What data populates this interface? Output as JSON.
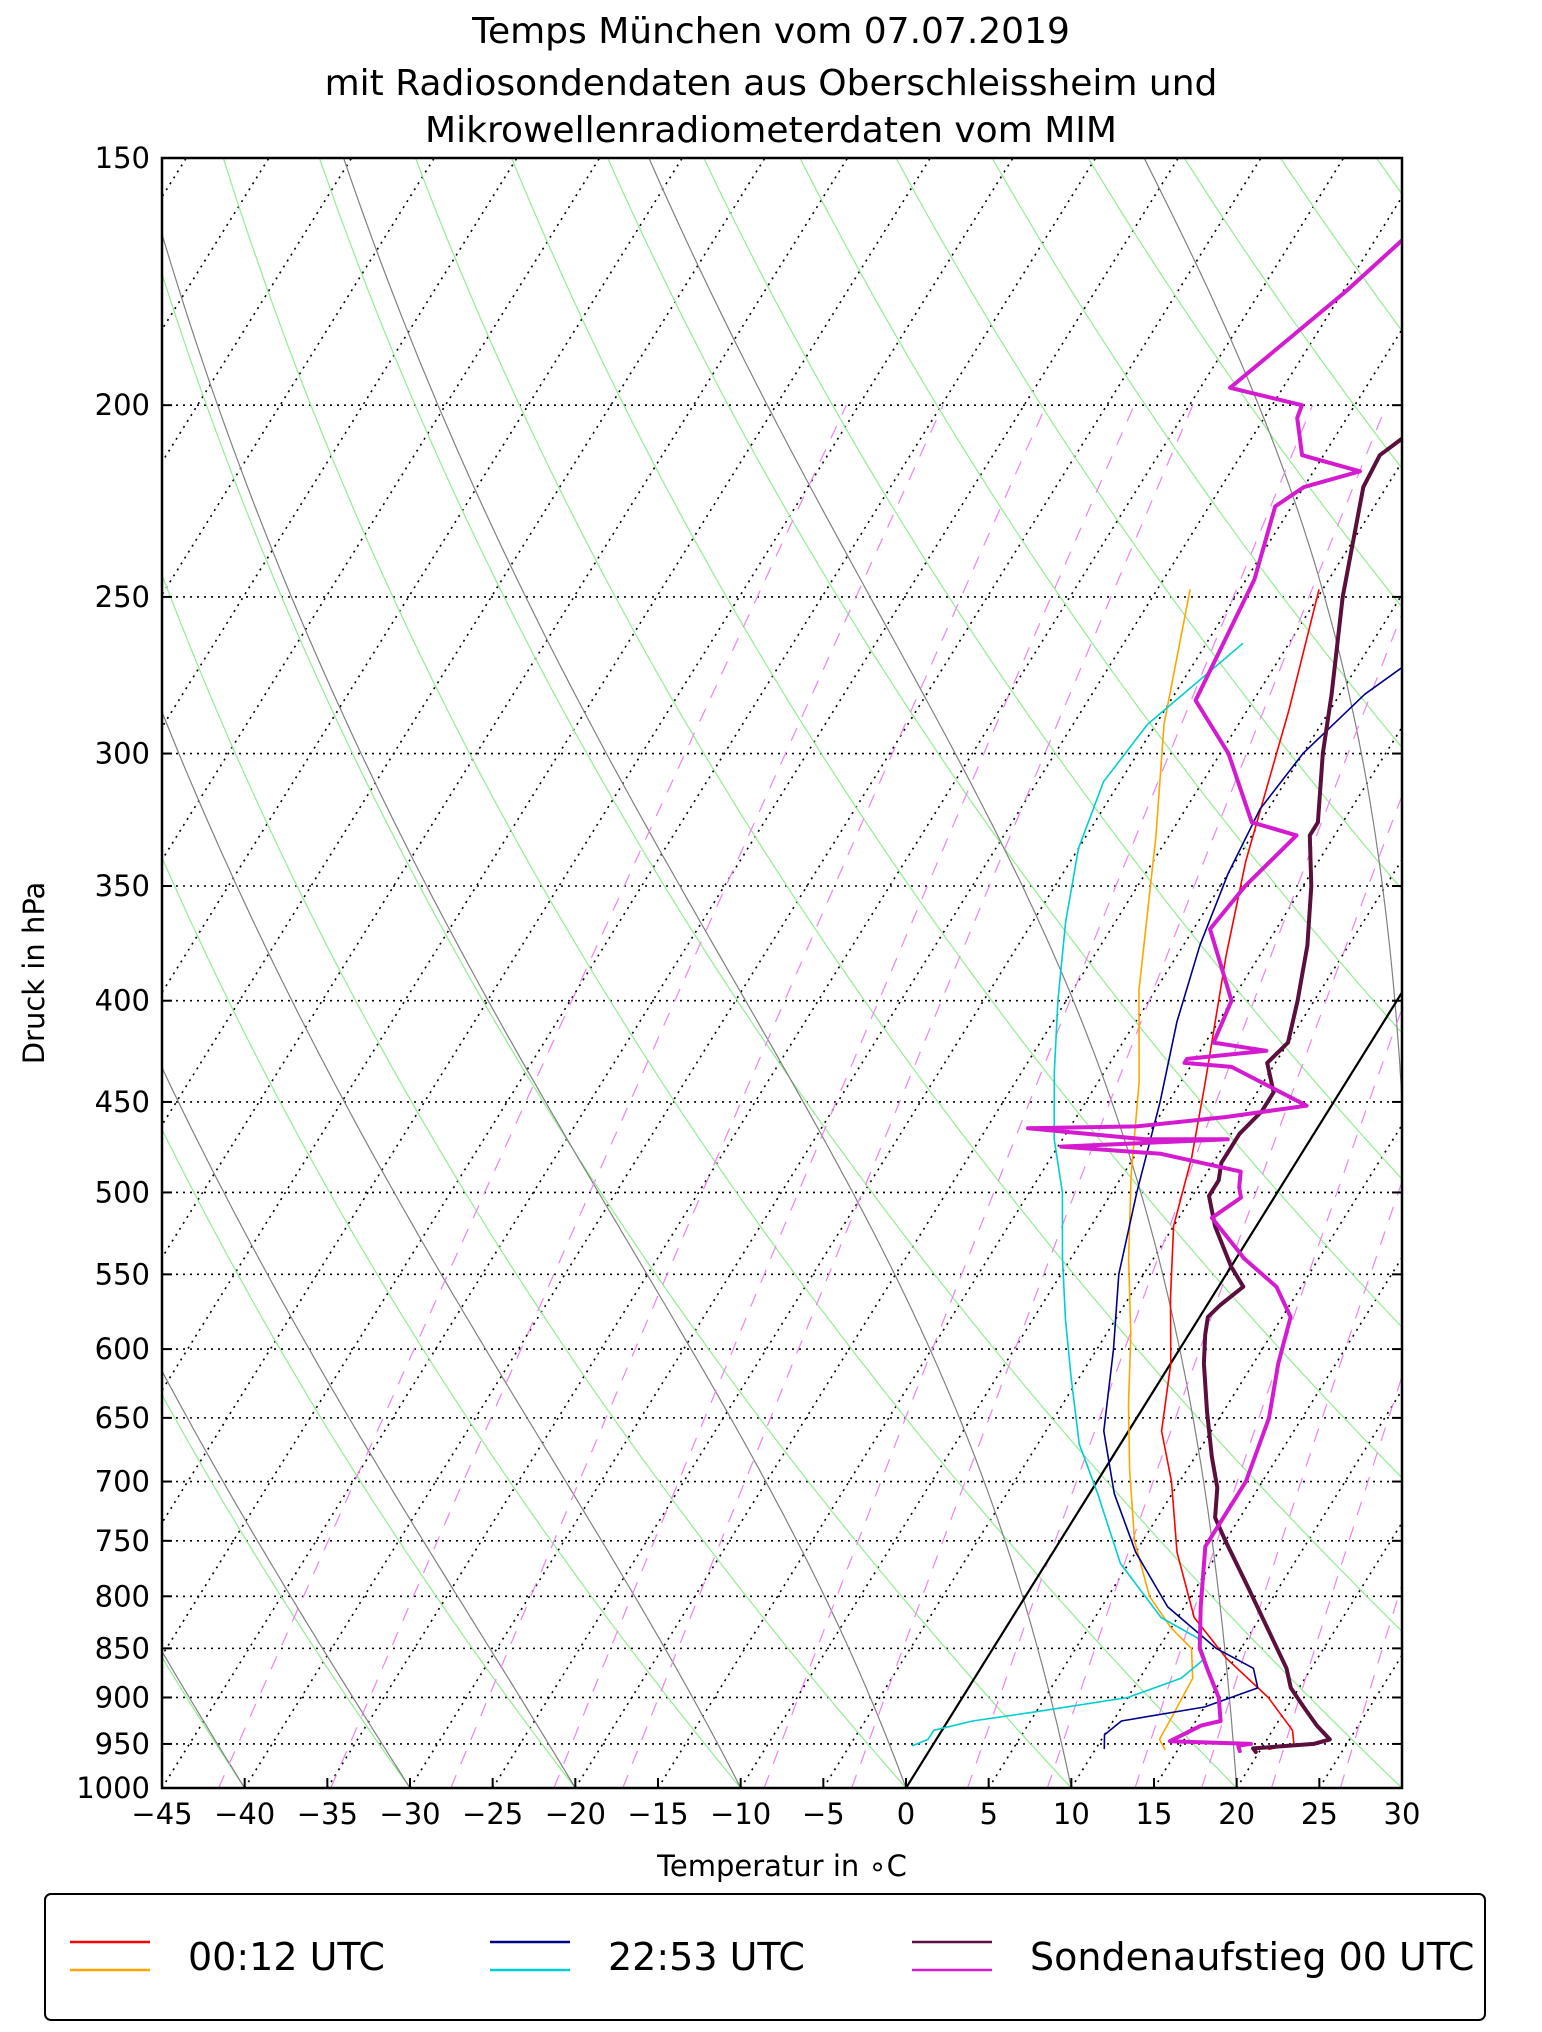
{
  "chart_data": {
    "type": "line",
    "title_lines": [
      "Temps München vom 07.07.2019",
      "mit Radiosondendaten aus Oberschleissheim und",
      "Mikrowellenradiometerdaten vom MIM"
    ],
    "xlabel": "Temperatur in ∘C",
    "ylabel": "Druck in hPa",
    "xlim": [
      -45,
      30
    ],
    "ylim": [
      1000,
      150
    ],
    "yscale": "log",
    "skew": true,
    "x_ticks": [
      -45,
      -40,
      -35,
      -30,
      -25,
      -20,
      -15,
      -10,
      -5,
      0,
      5,
      10,
      15,
      20,
      25,
      30
    ],
    "x_tick_labels": [
      "−45",
      "−40",
      "−35",
      "−30",
      "−25",
      "−20",
      "−15",
      "−10",
      "−5",
      "0",
      "5",
      "10",
      "15",
      "20",
      "25",
      "30"
    ],
    "y_ticks": [
      150,
      200,
      250,
      300,
      350,
      400,
      450,
      500,
      550,
      600,
      650,
      700,
      750,
      800,
      850,
      900,
      950,
      1000
    ],
    "y_tick_labels": [
      "150",
      "200",
      "250",
      "300",
      "350",
      "400",
      "450",
      "500",
      "550",
      "600",
      "650",
      "700",
      "750",
      "800",
      "850",
      "900",
      "950",
      "1000"
    ],
    "grid": true,
    "legend_position": "bottom",
    "legend": [
      {
        "label": "00:12 UTC",
        "colors": [
          "#ff0000",
          "#ffa500"
        ]
      },
      {
        "label": "22:53 UTC",
        "colors": [
          "#00008b",
          "#00ced1"
        ]
      },
      {
        "label": "Sondenaufstieg 00 UTC",
        "colors": [
          "#5a0f3c",
          "#d41bd0"
        ]
      }
    ],
    "isotherm_zero_color": "#000000",
    "dry_adiabat_color": "#90ee90",
    "moist_adiabat_color": "#808080",
    "mixing_ratio_color": "#ee82ee",
    "series": [
      {
        "color": "#ff0000",
        "width": 1.6,
        "points": [
          [
            -20.2,
            248
          ],
          [
            -17.5,
            285
          ],
          [
            -14.4,
            340
          ],
          [
            -12,
            380
          ],
          [
            -8.5,
            440
          ],
          [
            -6.5,
            480
          ],
          [
            -5,
            520
          ],
          [
            -2.5,
            565
          ],
          [
            0,
            610
          ],
          [
            2,
            660
          ],
          [
            4.5,
            700
          ],
          [
            7.5,
            760
          ],
          [
            11,
            820
          ],
          [
            14.5,
            860
          ],
          [
            18.5,
            900
          ],
          [
            21.2,
            935
          ],
          [
            21.8,
            950
          ],
          [
            20.5,
            956
          ]
        ]
      },
      {
        "color": "#ffa500",
        "width": 1.6,
        "points": [
          [
            -28,
            248
          ],
          [
            -24.5,
            290
          ],
          [
            -20.8,
            330
          ],
          [
            -16,
            395
          ],
          [
            -12.5,
            440
          ],
          [
            -9.5,
            490
          ],
          [
            -6.5,
            540
          ],
          [
            -3.5,
            590
          ],
          [
            -1,
            640
          ],
          [
            1.5,
            690
          ],
          [
            4.5,
            750
          ],
          [
            7.5,
            800
          ],
          [
            10,
            830
          ],
          [
            12,
            850
          ],
          [
            13.2,
            880
          ],
          [
            13.4,
            920
          ],
          [
            13.5,
            945
          ],
          [
            14.2,
            956
          ]
        ]
      },
      {
        "color": "#00008b",
        "width": 1.6,
        "points": [
          [
            -11,
            263
          ],
          [
            -13.5,
            280
          ],
          [
            -15,
            300
          ],
          [
            -15.5,
            320
          ],
          [
            -15,
            345
          ],
          [
            -14,
            375
          ],
          [
            -12.5,
            410
          ],
          [
            -10.5,
            450
          ],
          [
            -8.5,
            500
          ],
          [
            -6.5,
            550
          ],
          [
            -4,
            600
          ],
          [
            -1.5,
            660
          ],
          [
            1.5,
            710
          ],
          [
            5,
            760
          ],
          [
            9,
            810
          ],
          [
            13.5,
            850
          ],
          [
            16.5,
            870
          ],
          [
            17.5,
            890
          ],
          [
            15,
            910
          ],
          [
            10.5,
            925
          ],
          [
            10,
            940
          ],
          [
            10.5,
            955
          ]
        ]
      },
      {
        "color": "#00ced1",
        "width": 1.6,
        "points": [
          [
            -22.8,
            264
          ],
          [
            -25.5,
            290
          ],
          [
            -26,
            310
          ],
          [
            -25,
            335
          ],
          [
            -23,
            365
          ],
          [
            -20.5,
            400
          ],
          [
            -18,
            435
          ],
          [
            -15.5,
            470
          ],
          [
            -13,
            500
          ],
          [
            -10.5,
            540
          ],
          [
            -8,
            580
          ],
          [
            -5.5,
            620
          ],
          [
            -2.5,
            670
          ],
          [
            0.5,
            710
          ],
          [
            4.5,
            770
          ],
          [
            9,
            820
          ],
          [
            12,
            840
          ],
          [
            13.2,
            860
          ],
          [
            12.5,
            880
          ],
          [
            10,
            900
          ],
          [
            5,
            915
          ],
          [
            1.5,
            925
          ],
          [
            -0.5,
            935
          ],
          [
            -0.5,
            945
          ],
          [
            -1.2,
            952
          ]
        ]
      },
      {
        "color": "#5a0f3c",
        "width": 4,
        "points": [
          [
            -11.5,
            150
          ],
          [
            -15.8,
            175
          ],
          [
            -19.5,
            198
          ],
          [
            -19.8,
            202
          ],
          [
            -21.6,
            212
          ],
          [
            -21.4,
            220
          ],
          [
            -18.5,
            250
          ],
          [
            -15.5,
            280
          ],
          [
            -13.8,
            300
          ],
          [
            -11.5,
            325
          ],
          [
            -11.5,
            330
          ],
          [
            -9.5,
            350
          ],
          [
            -7.5,
            375
          ],
          [
            -6,
            400
          ],
          [
            -5,
            420
          ],
          [
            -5.5,
            430
          ],
          [
            -4,
            445
          ],
          [
            -4,
            455
          ],
          [
            -4.5,
            467
          ],
          [
            -4.5,
            475
          ],
          [
            -4.5,
            483
          ],
          [
            -4,
            493
          ],
          [
            -4,
            502
          ],
          [
            -2.5,
            520
          ],
          [
            0,
            545
          ],
          [
            1.5,
            558
          ],
          [
            0.8,
            570
          ],
          [
            0.5,
            578
          ],
          [
            1,
            590
          ],
          [
            2,
            610
          ],
          [
            4,
            645
          ],
          [
            6,
            680
          ],
          [
            7.5,
            705
          ],
          [
            8.5,
            730
          ],
          [
            10,
            750
          ],
          [
            13,
            790
          ],
          [
            16.5,
            840
          ],
          [
            18.5,
            870
          ],
          [
            19.5,
            890
          ],
          [
            21,
            910
          ],
          [
            22.5,
            930
          ],
          [
            23.8,
            945
          ],
          [
            23,
            950
          ],
          [
            19.5,
            955
          ],
          [
            19.8,
            959
          ]
        ]
      },
      {
        "color": "#d41bd0",
        "width": 4,
        "points": [
          [
            -26,
            150
          ],
          [
            -29.8,
            175
          ],
          [
            -33.2,
            196
          ],
          [
            -28.2,
            200
          ],
          [
            -28,
            203
          ],
          [
            -26.3,
            212
          ],
          [
            -22.2,
            216
          ],
          [
            -25,
            220
          ],
          [
            -26,
            225
          ],
          [
            -24.5,
            245
          ],
          [
            -23.5,
            282
          ],
          [
            -19.5,
            300
          ],
          [
            -15.5,
            325
          ],
          [
            -12.3,
            330
          ],
          [
            -13.5,
            350
          ],
          [
            -14,
            368
          ],
          [
            -10,
            400
          ],
          [
            -9.5,
            420
          ],
          [
            -6,
            424
          ],
          [
            -10.5,
            428
          ],
          [
            -10.5,
            430
          ],
          [
            -7.5,
            432
          ],
          [
            -1.5,
            452
          ],
          [
            -6,
            458
          ],
          [
            -11,
            463
          ],
          [
            -17.5,
            464
          ],
          [
            -10,
            470
          ],
          [
            -5,
            470
          ],
          [
            -14.8,
            474
          ],
          [
            -8.5,
            478
          ],
          [
            -3,
            488
          ],
          [
            -2.5,
            497
          ],
          [
            -2,
            503
          ],
          [
            -3,
            515
          ],
          [
            0.5,
            540
          ],
          [
            3.5,
            558
          ],
          [
            5.5,
            578
          ],
          [
            6.5,
            610
          ],
          [
            8,
            650
          ],
          [
            9,
            700
          ],
          [
            9,
            755
          ],
          [
            11,
            810
          ],
          [
            12.5,
            850
          ],
          [
            14,
            875
          ],
          [
            15.5,
            900
          ],
          [
            16.5,
            925
          ],
          [
            15.5,
            930
          ],
          [
            14.2,
            947
          ],
          [
            19.2,
            950
          ],
          [
            18.5,
            952
          ],
          [
            18.8,
            958
          ]
        ]
      }
    ]
  }
}
